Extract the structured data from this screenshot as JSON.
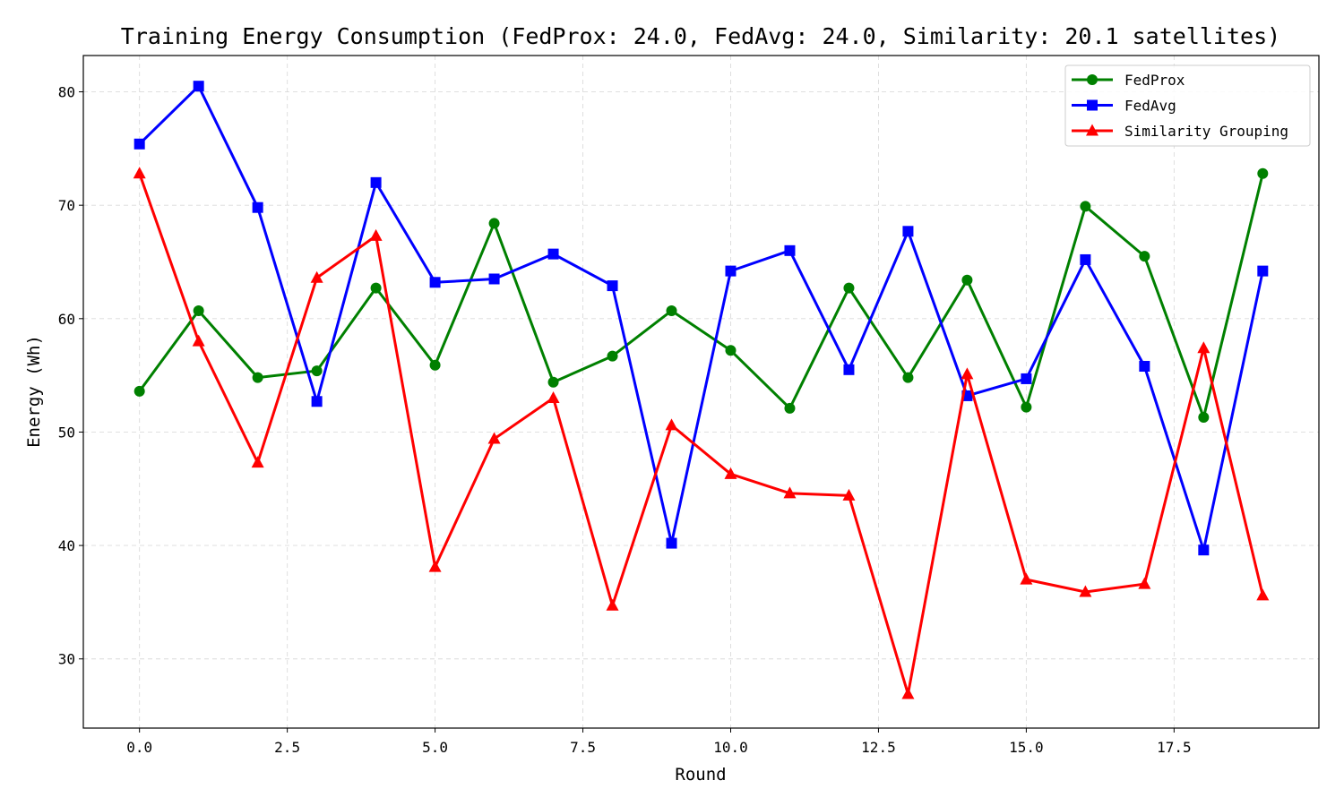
{
  "chart_data": {
    "type": "line",
    "title": "Training Energy Consumption (FedProx: 24.0, FedAvg: 24.0, Similarity: 20.1 satellites)",
    "xlabel": "Round",
    "ylabel": "Energy (Wh)",
    "xlim": [
      -0.95,
      19.95
    ],
    "ylim": [
      23.9,
      83.2
    ],
    "xticks": [
      0.0,
      2.5,
      5.0,
      7.5,
      10.0,
      12.5,
      15.0,
      17.5
    ],
    "xtick_labels": [
      "0.0",
      "2.5",
      "5.0",
      "7.5",
      "10.0",
      "12.5",
      "15.0",
      "17.5"
    ],
    "yticks": [
      30,
      40,
      50,
      60,
      70,
      80
    ],
    "ytick_labels": [
      "30",
      "40",
      "50",
      "60",
      "70",
      "80"
    ],
    "grid": true,
    "legend_position": "top-right",
    "x": [
      0,
      1,
      2,
      3,
      4,
      5,
      6,
      7,
      8,
      9,
      10,
      11,
      12,
      13,
      14,
      15,
      16,
      17,
      18,
      19
    ],
    "series": [
      {
        "name": "FedProx",
        "color": "#008000",
        "marker": "circle",
        "values": [
          53.6,
          60.7,
          54.8,
          55.4,
          62.7,
          55.9,
          68.4,
          54.4,
          56.7,
          60.7,
          57.2,
          52.1,
          62.7,
          54.8,
          63.4,
          52.2,
          69.9,
          65.5,
          51.3,
          72.8
        ]
      },
      {
        "name": "FedAvg",
        "color": "#0000ff",
        "marker": "square",
        "values": [
          75.4,
          80.5,
          69.8,
          52.7,
          72.0,
          63.2,
          63.5,
          65.7,
          62.9,
          40.2,
          64.2,
          66.0,
          55.5,
          67.7,
          53.2,
          54.7,
          65.2,
          55.8,
          39.6,
          64.2
        ]
      },
      {
        "name": "Similarity Grouping",
        "color": "#ff0000",
        "marker": "triangle",
        "values": [
          72.8,
          58.0,
          47.3,
          63.6,
          67.3,
          38.1,
          49.4,
          53.0,
          34.7,
          50.6,
          46.3,
          44.6,
          44.4,
          26.9,
          55.1,
          37.0,
          35.9,
          36.6,
          57.4,
          35.6
        ]
      }
    ]
  }
}
